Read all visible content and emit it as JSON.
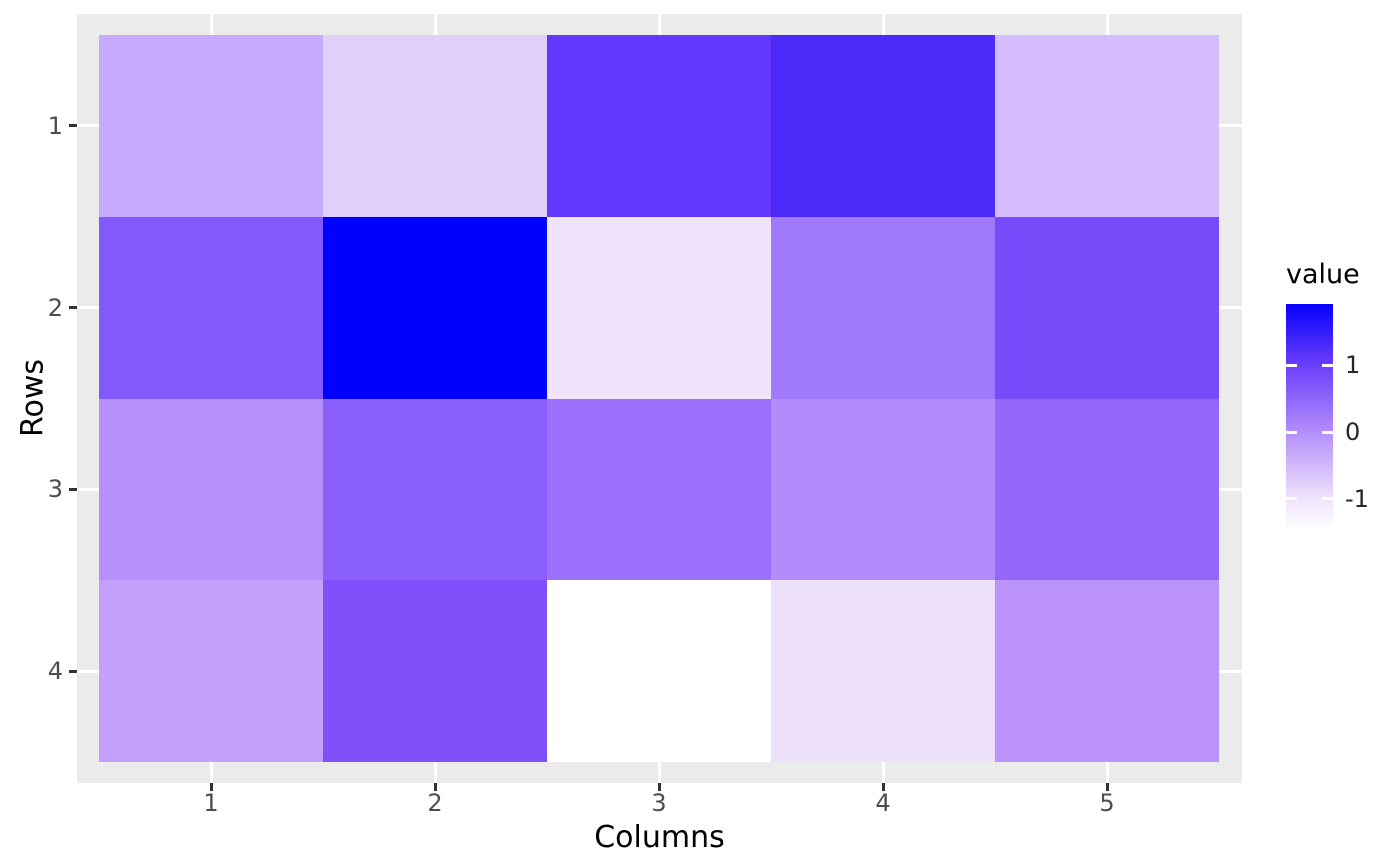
{
  "figure": {
    "background": "#FFFFFF",
    "panel_background": "#EBEBEB",
    "gridline_color": "#FFFFFF",
    "tick_mark_color": "#333333",
    "tick_label_color": "#4D4D4D",
    "axis_title_color": "#000000"
  },
  "chart_data": {
    "type": "heatmap",
    "title": "",
    "xlabel": "Columns",
    "ylabel": "Rows",
    "x_ticks": [
      "1",
      "2",
      "3",
      "4",
      "5"
    ],
    "y_ticks": [
      "1",
      "2",
      "3",
      "4"
    ],
    "rows": 4,
    "cols": 5,
    "grid": "major-only",
    "values": [
      [
        -0.25,
        -0.75,
        1.05,
        1.25,
        -0.5
      ],
      [
        0.65,
        1.9,
        -1.0,
        0.3,
        0.8
      ],
      [
        0.0,
        0.6,
        0.4,
        0.05,
        0.5
      ],
      [
        -0.2,
        0.75,
        -1.45,
        -0.95,
        -0.05
      ]
    ],
    "cell_colors": [
      [
        "#C7A9FD",
        "#E0D0F9",
        "#6239FC",
        "#4C2BFA",
        "#D5BCFC"
      ],
      [
        "#8459FB",
        "#0000FE",
        "#F0E3FB",
        "#A179FB",
        "#7A4BFB"
      ],
      [
        "#B78FFB",
        "#8B5FFB",
        "#9B71FB",
        "#B28CFB",
        "#9467FB"
      ],
      [
        "#C49FFC",
        "#8050FB",
        "#FFFFFF",
        "#EDE1FA",
        "#BC93FB"
      ]
    ],
    "color_scale": {
      "low_color": "#FFFFFF",
      "high_color": "#0000FE",
      "domain": [
        -1.47,
        1.92
      ]
    },
    "legend": {
      "title": "value",
      "position": "right",
      "tick_labels": [
        "1",
        "0",
        "-1"
      ],
      "tick_values": [
        1,
        0,
        -1
      ],
      "tick_color": "#FFFFFF",
      "gradient_stops": [
        {
          "pos": 0.0,
          "color": "#0700FE"
        },
        {
          "pos": 0.271,
          "color": "#6B3EFC"
        },
        {
          "pos": 0.566,
          "color": "#B38DFB"
        },
        {
          "pos": 0.861,
          "color": "#EFE3FB"
        },
        {
          "pos": 1.0,
          "color": "#FFFFFF"
        }
      ]
    }
  }
}
